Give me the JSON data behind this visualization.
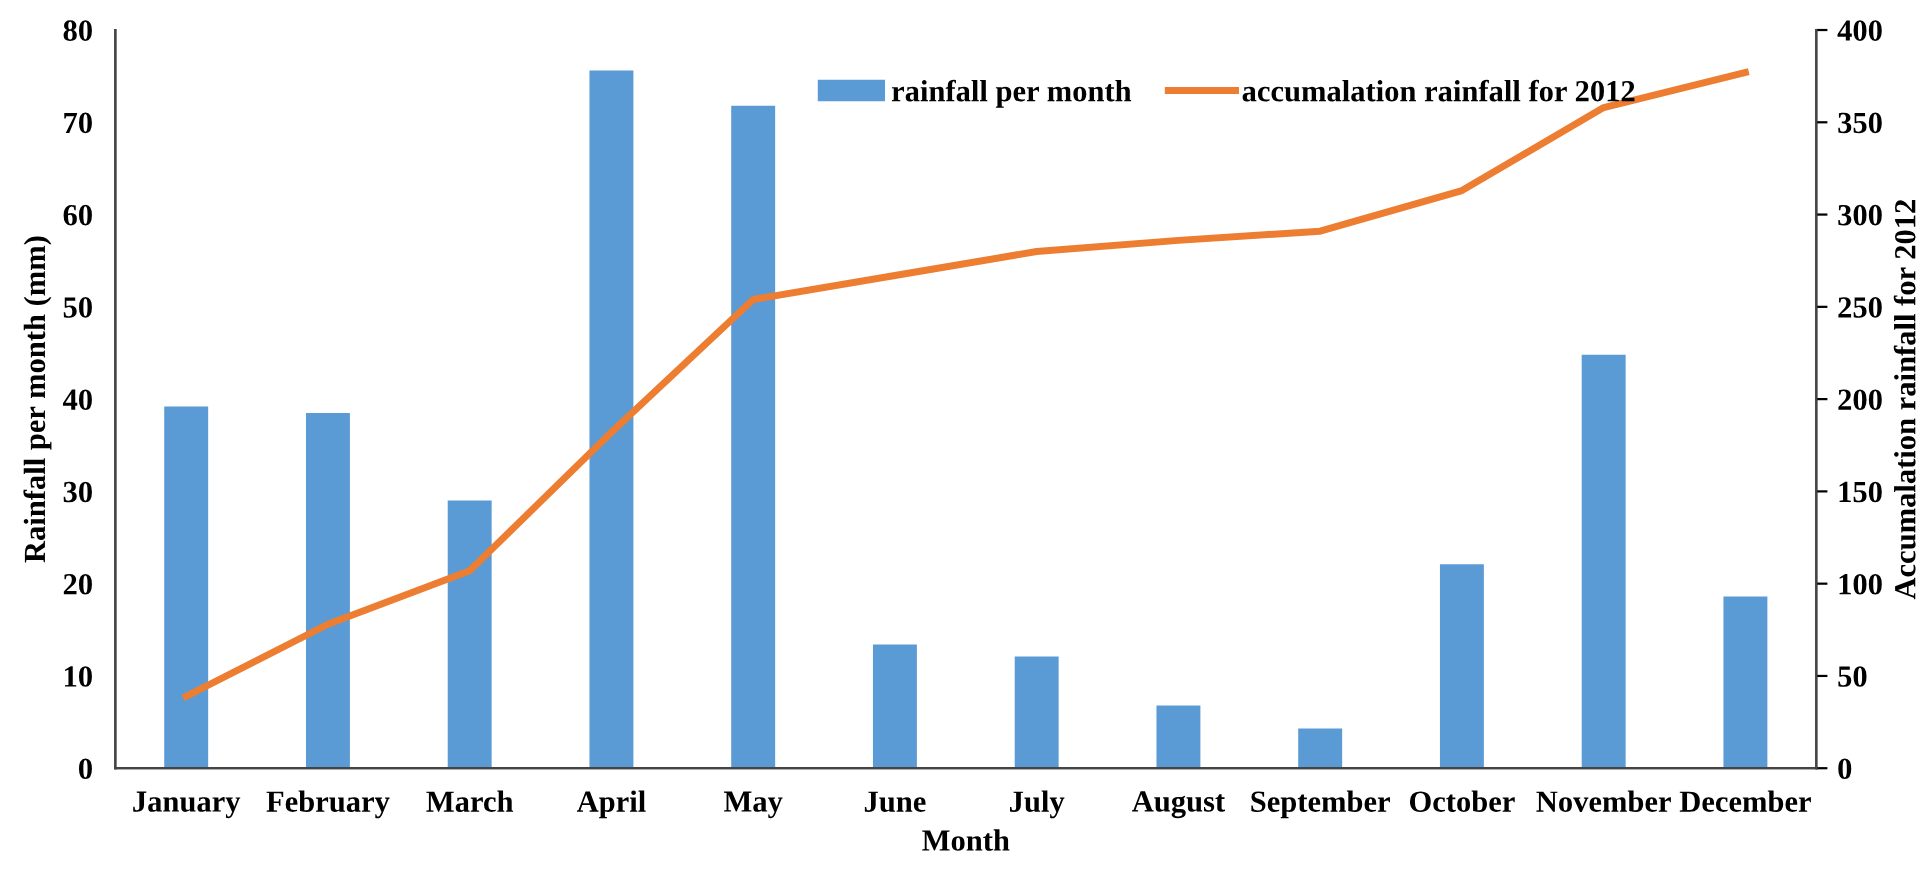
{
  "chart_data": {
    "type": "bar",
    "xlabel": "Month",
    "ylabel": "Rainfall per month (mm)",
    "y2label": "Accumalation rainfall for 2012",
    "categories": [
      "January",
      "February",
      "March",
      "April",
      "May",
      "June",
      "July",
      "August",
      "September",
      "October",
      "November",
      "December"
    ],
    "series": [
      {
        "name": "rainfall per month",
        "color": "#5b9bd5",
        "values": [
          39.2,
          38.5,
          29,
          75.6,
          71.8,
          13.4,
          12.1,
          6.8,
          4.3,
          22.1,
          44.8,
          18.6
        ]
      },
      {
        "name": "accumalation rainfall for 2012",
        "type": "line",
        "axis": "y2",
        "color": "#ed7d31",
        "values": [
          39,
          78,
          107,
          182,
          254,
          267,
          280,
          286,
          291,
          313,
          358,
          377
        ]
      }
    ],
    "ylim": [
      0,
      80
    ],
    "yticks": [
      0,
      10,
      20,
      30,
      40,
      50,
      60,
      70,
      80
    ],
    "y2lim": [
      0,
      400
    ],
    "y2ticks": [
      0,
      50,
      100,
      150,
      200,
      250,
      300,
      350,
      400
    ],
    "grid": false,
    "legend": "top right",
    "marker": "none",
    "line_style": "solid"
  }
}
